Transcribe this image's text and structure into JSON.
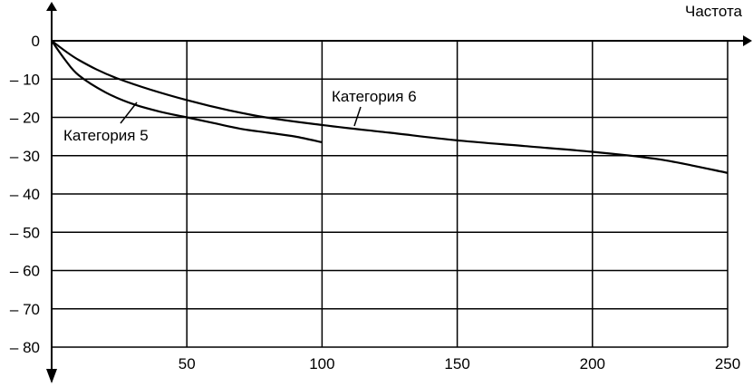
{
  "chart_data": {
    "type": "line",
    "title": "",
    "xlabel": "Частота",
    "ylabel": "",
    "xlim": [
      0,
      250
    ],
    "ylim": [
      -80,
      0
    ],
    "x_ticks": [
      50,
      100,
      150,
      200,
      250
    ],
    "x_tick_labels": [
      "50",
      "100",
      "150",
      "200",
      "250"
    ],
    "y_ticks": [
      0,
      -10,
      -20,
      -30,
      -40,
      -50,
      -60,
      -70,
      -80
    ],
    "y_tick_labels": [
      "0",
      "– 10",
      "– 20",
      "– 30",
      "– 40",
      "– 50",
      "– 60",
      "– 70",
      "– 80"
    ],
    "grid": true,
    "series": [
      {
        "name": "Категория 5",
        "x": [
          0,
          5,
          10,
          20,
          30,
          40,
          50,
          60,
          70,
          80,
          90,
          100
        ],
        "y": [
          0,
          -5,
          -9,
          -13.5,
          -16.5,
          -18.5,
          -20,
          -21.5,
          -23,
          -24,
          -25,
          -26.5
        ]
      },
      {
        "name": "Категория 6",
        "x": [
          0,
          10,
          25,
          50,
          75,
          100,
          125,
          150,
          175,
          200,
          225,
          250
        ],
        "y": [
          0,
          -5,
          -10,
          -15.5,
          -19.5,
          -22,
          -24,
          -26,
          -27.5,
          -29,
          -31,
          -34.5
        ]
      }
    ]
  }
}
